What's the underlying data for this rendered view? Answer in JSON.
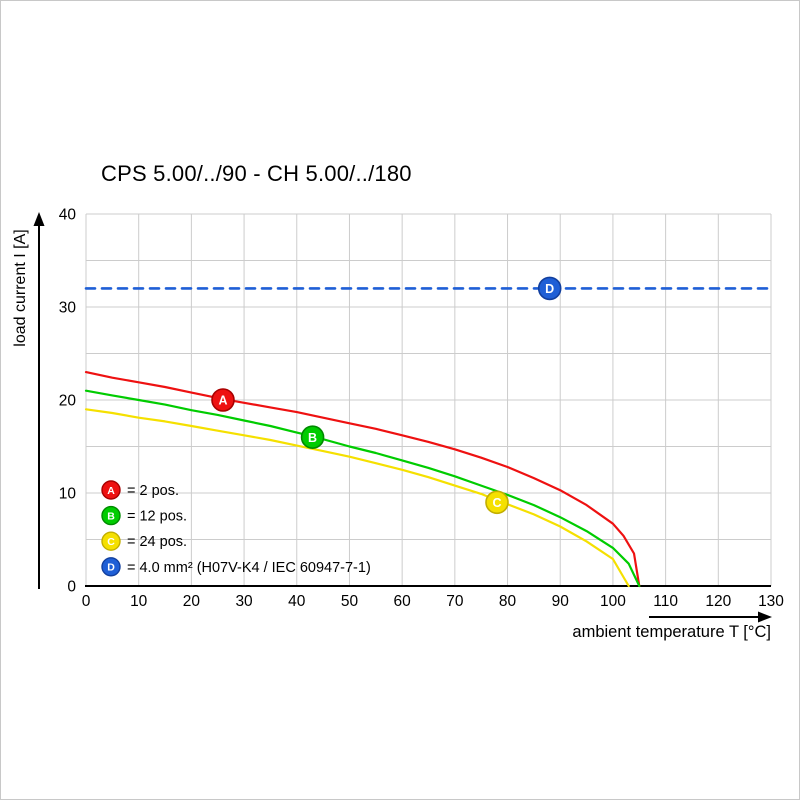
{
  "page": {
    "title": "CPS 5.00/../90 - CH 5.00/../180"
  },
  "chart_data": {
    "type": "line",
    "title": "CPS 5.00/../90 - CH 5.00/../180",
    "xlabel": "ambient temperature T [°C]",
    "ylabel": "load current I [A]",
    "xlim": [
      0,
      130
    ],
    "ylim": [
      0,
      40
    ],
    "x_ticks": [
      0,
      10,
      20,
      30,
      40,
      50,
      60,
      70,
      80,
      90,
      100,
      110,
      120,
      130
    ],
    "y_ticks": [
      0,
      10,
      20,
      30,
      40
    ],
    "y_grid_step": 5,
    "grid": true,
    "grid_color": "#cccccc",
    "axis_color": "#000000",
    "legend_position": "inside-bottom-left",
    "series": [
      {
        "id": "A",
        "legend_label": "= 2 pos.",
        "color": "#ee1111",
        "marker_border": "#a80000",
        "marker_text_color": "#ffffff",
        "style": "solid",
        "marker_at": [
          26,
          20
        ],
        "points": [
          [
            0,
            23
          ],
          [
            5,
            22.4
          ],
          [
            10,
            21.9
          ],
          [
            15,
            21.4
          ],
          [
            20,
            20.8
          ],
          [
            26,
            20.1
          ],
          [
            30,
            19.7
          ],
          [
            35,
            19.2
          ],
          [
            40,
            18.7
          ],
          [
            45,
            18.1
          ],
          [
            50,
            17.5
          ],
          [
            55,
            16.9
          ],
          [
            60,
            16.2
          ],
          [
            65,
            15.5
          ],
          [
            70,
            14.7
          ],
          [
            75,
            13.8
          ],
          [
            80,
            12.8
          ],
          [
            85,
            11.6
          ],
          [
            90,
            10.3
          ],
          [
            95,
            8.7
          ],
          [
            100,
            6.7
          ],
          [
            102,
            5.4
          ],
          [
            104,
            3.5
          ],
          [
            105,
            0
          ]
        ]
      },
      {
        "id": "B",
        "legend_label": "= 12 pos.",
        "color": "#00cc00",
        "marker_border": "#008a00",
        "marker_text_color": "#ffffff",
        "style": "solid",
        "marker_at": [
          43,
          16
        ],
        "points": [
          [
            0,
            21
          ],
          [
            5,
            20.5
          ],
          [
            10,
            20.0
          ],
          [
            15,
            19.5
          ],
          [
            20,
            18.9
          ],
          [
            25,
            18.4
          ],
          [
            30,
            17.8
          ],
          [
            35,
            17.2
          ],
          [
            40,
            16.5
          ],
          [
            43,
            16.1
          ],
          [
            50,
            15.0
          ],
          [
            55,
            14.3
          ],
          [
            60,
            13.5
          ],
          [
            65,
            12.7
          ],
          [
            70,
            11.8
          ],
          [
            75,
            10.8
          ],
          [
            80,
            9.8
          ],
          [
            85,
            8.7
          ],
          [
            90,
            7.4
          ],
          [
            95,
            5.9
          ],
          [
            100,
            4.1
          ],
          [
            103,
            2.4
          ],
          [
            105,
            0
          ]
        ]
      },
      {
        "id": "C",
        "legend_label": "= 24 pos.",
        "color": "#f5e000",
        "marker_border": "#c2ae00",
        "marker_text_color": "#ffffff",
        "style": "solid",
        "marker_at": [
          78,
          9
        ],
        "points": [
          [
            0,
            19
          ],
          [
            5,
            18.6
          ],
          [
            10,
            18.1
          ],
          [
            15,
            17.7
          ],
          [
            20,
            17.2
          ],
          [
            25,
            16.7
          ],
          [
            30,
            16.2
          ],
          [
            35,
            15.7
          ],
          [
            40,
            15.1
          ],
          [
            45,
            14.5
          ],
          [
            50,
            13.9
          ],
          [
            55,
            13.2
          ],
          [
            60,
            12.5
          ],
          [
            65,
            11.7
          ],
          [
            70,
            10.8
          ],
          [
            75,
            9.9
          ],
          [
            78,
            9.2
          ],
          [
            80,
            8.8
          ],
          [
            85,
            7.7
          ],
          [
            90,
            6.4
          ],
          [
            95,
            4.8
          ],
          [
            100,
            2.9
          ],
          [
            103,
            0
          ]
        ]
      },
      {
        "id": "D",
        "legend_label": "= 4.0 mm² (H07V-K4 / IEC 60947-7-1)",
        "color": "#1f5fd6",
        "marker_border": "#123f9e",
        "marker_text_color": "#ffffff",
        "style": "dashed",
        "marker_at": [
          88,
          32
        ],
        "points": [
          [
            0,
            32
          ],
          [
            130,
            32
          ]
        ]
      }
    ]
  }
}
